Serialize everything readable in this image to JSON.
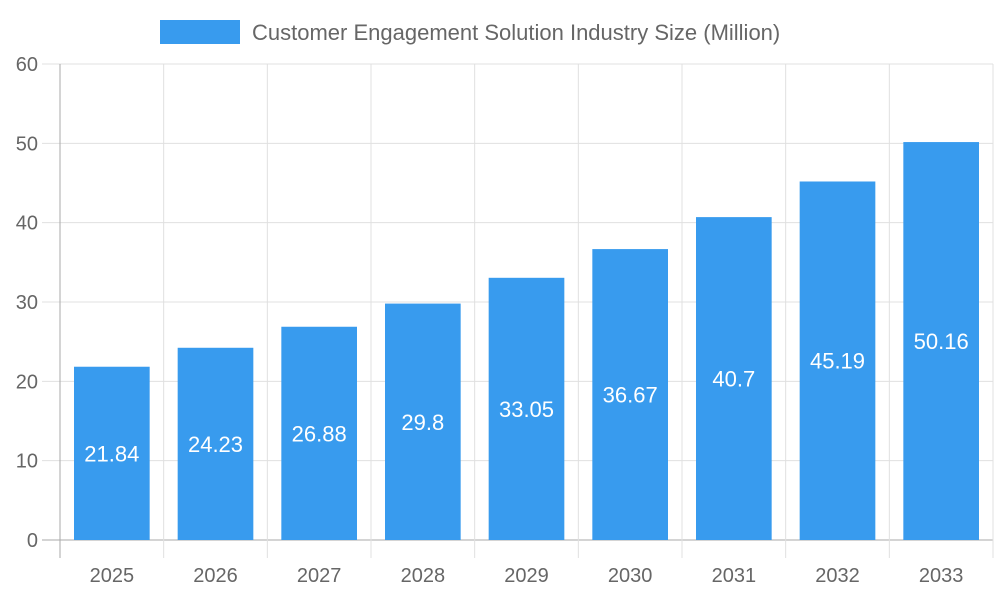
{
  "chart_data": {
    "type": "bar",
    "categories": [
      "2025",
      "2026",
      "2027",
      "2028",
      "2029",
      "2030",
      "2031",
      "2032",
      "2033"
    ],
    "series": [
      {
        "name": "Customer Engagement Solution Industry Size (Million)",
        "values": [
          21.84,
          24.23,
          26.88,
          29.8,
          33.05,
          36.67,
          40.7,
          45.19,
          50.16
        ]
      }
    ],
    "data_labels": [
      "21.84",
      "24.23",
      "26.88",
      "29.8",
      "33.05",
      "36.67",
      "40.7",
      "45.19",
      "50.16"
    ],
    "yticks": [
      "0",
      "10",
      "20",
      "30",
      "40",
      "50",
      "60"
    ],
    "ylim": [
      0,
      60
    ],
    "grid": true,
    "legend": "top",
    "colors": {
      "bar": "#389bee",
      "grid": "#e0e0e0",
      "text": "#666666",
      "axis": "#aaaaaa"
    }
  }
}
